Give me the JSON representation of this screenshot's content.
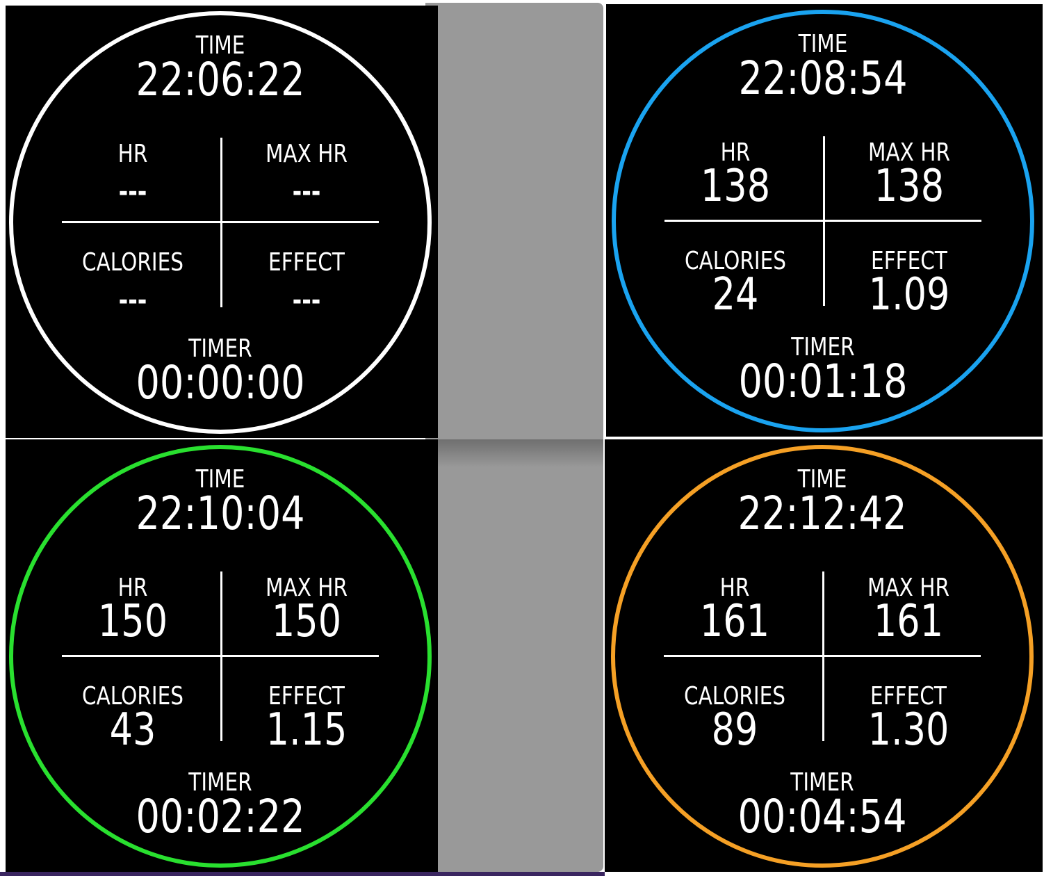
{
  "screens": [
    {
      "ring_color": "#ffffff",
      "time_label": "TIME",
      "time_value": "22:06:22",
      "hr_label": "HR",
      "hr_value": "---",
      "maxhr_label": "MAX HR",
      "maxhr_value": "---",
      "calories_label": "CALORIES",
      "calories_value": "---",
      "effect_label": "EFFECT",
      "effect_value": "---",
      "timer_label": "TIMER",
      "timer_value": "00:00:00"
    },
    {
      "ring_color": "#1aa3f0",
      "time_label": "TIME",
      "time_value": "22:08:54",
      "hr_label": "HR",
      "hr_value": "138",
      "maxhr_label": "MAX HR",
      "maxhr_value": "138",
      "calories_label": "CALORIES",
      "calories_value": "24",
      "effect_label": "EFFECT",
      "effect_value": "1.09",
      "timer_label": "TIMER",
      "timer_value": "00:01:18"
    },
    {
      "ring_color": "#29e02f",
      "time_label": "TIME",
      "time_value": "22:10:04",
      "hr_label": "HR",
      "hr_value": "150",
      "maxhr_label": "MAX HR",
      "maxhr_value": "150",
      "calories_label": "CALORIES",
      "calories_value": "43",
      "effect_label": "EFFECT",
      "effect_value": "1.15",
      "timer_label": "TIMER",
      "timer_value": "00:02:22"
    },
    {
      "ring_color": "#f5a025",
      "time_label": "TIME",
      "time_value": "22:12:42",
      "hr_label": "HR",
      "hr_value": "161",
      "maxhr_label": "MAX HR",
      "maxhr_value": "161",
      "calories_label": "CALORIES",
      "calories_value": "89",
      "effect_label": "EFFECT",
      "effect_value": "1.30",
      "timer_label": "TIMER",
      "timer_value": "00:04:54"
    }
  ]
}
